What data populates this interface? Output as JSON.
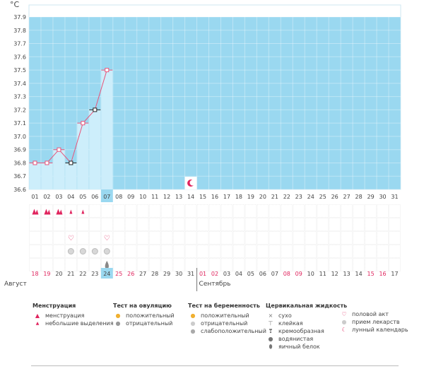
{
  "chart_data": {
    "type": "line",
    "unit_label": "°C",
    "y_ticks": [
      "37.9",
      "37.8",
      "37.7",
      "37.6",
      "37.5",
      "37.4",
      "37.3",
      "37.2",
      "37.1",
      "37.0",
      "36.9",
      "36.8",
      "36.7",
      "36.6"
    ],
    "ylim": [
      36.6,
      37.9
    ],
    "cycle_days": [
      "01",
      "02",
      "03",
      "04",
      "05",
      "06",
      "07",
      "08",
      "09",
      "10",
      "11",
      "12",
      "13",
      "14",
      "15",
      "16",
      "17",
      "18",
      "19",
      "20",
      "21",
      "22",
      "23",
      "24",
      "25",
      "26",
      "27",
      "28",
      "29",
      "30",
      "31"
    ],
    "current_day_index": 6,
    "temperatures": [
      36.8,
      36.8,
      36.9,
      36.8,
      37.1,
      37.2,
      37.5
    ],
    "marker_styles": [
      "pink",
      "pink",
      "pink",
      "black",
      "pink",
      "black",
      "pink"
    ],
    "ovulation_window": {
      "start": 37.9
    },
    "lunar_marker_day_index": 13,
    "grid": true
  },
  "event_rows": {
    "menstruation": [
      "heavy",
      "heavy",
      "heavy",
      "light",
      "light"
    ],
    "intercourse_days": [
      3,
      6
    ],
    "medication_days": [
      3,
      4,
      5,
      6
    ],
    "cervical_day": 6
  },
  "calendar": {
    "dates": [
      "18",
      "19",
      "20",
      "21",
      "22",
      "23",
      "24",
      "25",
      "26",
      "27",
      "28",
      "29",
      "30",
      "31",
      "01",
      "02",
      "03",
      "04",
      "05",
      "06",
      "07",
      "08",
      "09",
      "10",
      "11",
      "12",
      "13",
      "14",
      "15",
      "16",
      "17"
    ],
    "weekend_flags": [
      true,
      true,
      false,
      false,
      false,
      false,
      false,
      true,
      true,
      false,
      false,
      false,
      false,
      false,
      true,
      true,
      false,
      false,
      false,
      false,
      false,
      true,
      true,
      false,
      false,
      false,
      false,
      false,
      true,
      true,
      false
    ],
    "month_left": "Август",
    "month_right": "Сентябрь",
    "month_split_index": 14
  },
  "legend": {
    "menstruation": {
      "title": "Менструация",
      "items": [
        "менструация",
        "небольшие выделения"
      ]
    },
    "ovulation_test": {
      "title": "Тест на овуляцию",
      "items": [
        "положительный",
        "отрицательный"
      ]
    },
    "pregnancy_test": {
      "title": "Тест на беременность",
      "items": [
        "положительный",
        "отрицательный",
        "слабоположительный"
      ]
    },
    "cervical_fluid": {
      "title": "Цервикальная жидкость",
      "items": [
        "сухо",
        "клейкая",
        "кремообразная",
        "водянистая",
        "яичный белок"
      ]
    },
    "other": {
      "items": [
        "половой акт",
        "прием лекарств",
        "лунный календарь"
      ]
    }
  },
  "colors": {
    "ovulation_band": "#9ad8f0",
    "bars": "#cdeefb",
    "current_day": "#9ad8f0",
    "line": "#e8547a",
    "weekend": "#e0245e"
  }
}
